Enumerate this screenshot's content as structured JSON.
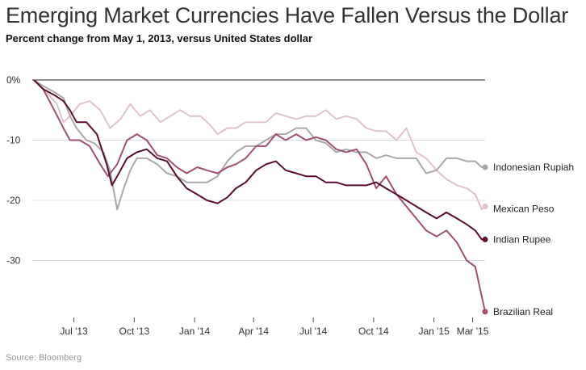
{
  "title": "Emerging Market Currencies Have Fallen Versus the Dollar",
  "subtitle": "Percent change from May 1, 2013, versus United States dollar",
  "source": "Source: Bloomberg",
  "chart_data": {
    "type": "line",
    "title": "Emerging Market Currencies Have Fallen Versus the Dollar",
    "subtitle": "Percent change from May 1, 2013, versus United States dollar",
    "xlabel": "",
    "ylabel": "",
    "xlim": [
      "2013-05-01",
      "2015-03-20"
    ],
    "ylim": [
      -40,
      2
    ],
    "y_ticks": [
      0,
      -10,
      -20,
      -30
    ],
    "y_tick_labels": [
      "0%",
      "-10",
      "-20",
      "-30"
    ],
    "x_ticks": [
      "2013-07-01",
      "2013-10-01",
      "2014-01-01",
      "2014-04-01",
      "2014-07-01",
      "2014-10-01",
      "2015-01-01",
      "2015-03-01"
    ],
    "x_tick_labels": [
      "Jul '13",
      "Oct '13",
      "Jan '14",
      "Apr '14",
      "Jul '14",
      "Oct '14",
      "Jan '15",
      "Mar '15"
    ],
    "grid": "horizontal",
    "legend": "direct labels at line ends (right)",
    "series": [
      {
        "name": "Mexican Peso",
        "color": "#dfc3cb",
        "points": [
          [
            "2013-05-01",
            0
          ],
          [
            "2013-05-20",
            -2
          ],
          [
            "2013-06-05",
            -4
          ],
          [
            "2013-06-15",
            -7
          ],
          [
            "2013-06-25",
            -6
          ],
          [
            "2013-07-10",
            -4
          ],
          [
            "2013-07-25",
            -3.5
          ],
          [
            "2013-08-10",
            -5
          ],
          [
            "2013-08-25",
            -8
          ],
          [
            "2013-09-10",
            -6.5
          ],
          [
            "2013-09-25",
            -4
          ],
          [
            "2013-10-10",
            -6
          ],
          [
            "2013-10-25",
            -5
          ],
          [
            "2013-11-10",
            -7
          ],
          [
            "2013-11-25",
            -6
          ],
          [
            "2013-12-10",
            -5
          ],
          [
            "2013-12-25",
            -6
          ],
          [
            "2014-01-10",
            -6
          ],
          [
            "2014-01-25",
            -7.5
          ],
          [
            "2014-02-05",
            -9
          ],
          [
            "2014-02-20",
            -8
          ],
          [
            "2014-03-05",
            -8
          ],
          [
            "2014-03-20",
            -7
          ],
          [
            "2014-04-05",
            -7
          ],
          [
            "2014-04-20",
            -7
          ],
          [
            "2014-05-05",
            -5.5
          ],
          [
            "2014-05-20",
            -6
          ],
          [
            "2014-06-05",
            -6.5
          ],
          [
            "2014-06-20",
            -6
          ],
          [
            "2014-07-05",
            -6
          ],
          [
            "2014-07-20",
            -5
          ],
          [
            "2014-08-05",
            -6.5
          ],
          [
            "2014-08-20",
            -6
          ],
          [
            "2014-09-05",
            -6.5
          ],
          [
            "2014-09-20",
            -8
          ],
          [
            "2014-10-05",
            -8.5
          ],
          [
            "2014-10-20",
            -8.5
          ],
          [
            "2014-11-05",
            -10
          ],
          [
            "2014-11-20",
            -8
          ],
          [
            "2014-12-05",
            -12
          ],
          [
            "2014-12-20",
            -13
          ],
          [
            "2015-01-05",
            -15
          ],
          [
            "2015-01-20",
            -16.5
          ],
          [
            "2015-02-05",
            -17.5
          ],
          [
            "2015-02-20",
            -18
          ],
          [
            "2015-03-05",
            -19
          ],
          [
            "2015-03-15",
            -21.5
          ],
          [
            "2015-03-20",
            -21
          ]
        ]
      },
      {
        "name": "Indonesian Rupiah",
        "color": "#a9a9a9",
        "points": [
          [
            "2013-05-01",
            0
          ],
          [
            "2013-05-15",
            -1
          ],
          [
            "2013-06-01",
            -2
          ],
          [
            "2013-06-15",
            -3
          ],
          [
            "2013-06-25",
            -6
          ],
          [
            "2013-07-05",
            -8
          ],
          [
            "2013-07-20",
            -10
          ],
          [
            "2013-08-01",
            -10.5
          ],
          [
            "2013-08-15",
            -12
          ],
          [
            "2013-08-25",
            -15
          ],
          [
            "2013-09-05",
            -21.5
          ],
          [
            "2013-09-15",
            -18
          ],
          [
            "2013-09-25",
            -15
          ],
          [
            "2013-10-05",
            -13
          ],
          [
            "2013-10-20",
            -13
          ],
          [
            "2013-11-05",
            -14
          ],
          [
            "2013-11-20",
            -15.5
          ],
          [
            "2013-12-05",
            -16
          ],
          [
            "2013-12-20",
            -17
          ],
          [
            "2014-01-05",
            -17
          ],
          [
            "2014-01-20",
            -17
          ],
          [
            "2014-02-05",
            -16
          ],
          [
            "2014-02-20",
            -13.5
          ],
          [
            "2014-03-05",
            -12
          ],
          [
            "2014-03-20",
            -11
          ],
          [
            "2014-04-05",
            -11
          ],
          [
            "2014-04-20",
            -10
          ],
          [
            "2014-05-05",
            -9
          ],
          [
            "2014-05-20",
            -9
          ],
          [
            "2014-06-05",
            -8
          ],
          [
            "2014-06-20",
            -8
          ],
          [
            "2014-07-05",
            -10
          ],
          [
            "2014-07-20",
            -10.5
          ],
          [
            "2014-08-05",
            -12
          ],
          [
            "2014-08-20",
            -11.5
          ],
          [
            "2014-09-05",
            -12
          ],
          [
            "2014-09-20",
            -12
          ],
          [
            "2014-10-05",
            -13
          ],
          [
            "2014-10-20",
            -12.5
          ],
          [
            "2014-11-05",
            -13
          ],
          [
            "2014-11-20",
            -13
          ],
          [
            "2014-12-05",
            -13
          ],
          [
            "2014-12-20",
            -15.5
          ],
          [
            "2015-01-05",
            -15
          ],
          [
            "2015-01-20",
            -13
          ],
          [
            "2015-02-05",
            -13
          ],
          [
            "2015-02-20",
            -13.5
          ],
          [
            "2015-03-05",
            -13.5
          ],
          [
            "2015-03-15",
            -14.5
          ],
          [
            "2015-03-20",
            -14.5
          ]
        ]
      },
      {
        "name": "Brazilian Real",
        "color": "#a3506b",
        "points": [
          [
            "2013-05-01",
            0
          ],
          [
            "2013-05-15",
            -1.5
          ],
          [
            "2013-06-01",
            -5
          ],
          [
            "2013-06-15",
            -8
          ],
          [
            "2013-06-25",
            -10
          ],
          [
            "2013-07-10",
            -10
          ],
          [
            "2013-07-25",
            -11
          ],
          [
            "2013-08-10",
            -14
          ],
          [
            "2013-08-22",
            -16
          ],
          [
            "2013-09-05",
            -14
          ],
          [
            "2013-09-20",
            -10
          ],
          [
            "2013-10-05",
            -9
          ],
          [
            "2013-10-20",
            -10
          ],
          [
            "2013-11-05",
            -12.5
          ],
          [
            "2013-11-20",
            -13
          ],
          [
            "2013-12-05",
            -14.5
          ],
          [
            "2013-12-20",
            -15.5
          ],
          [
            "2014-01-05",
            -14.5
          ],
          [
            "2014-01-20",
            -15
          ],
          [
            "2014-02-05",
            -15.5
          ],
          [
            "2014-02-20",
            -14.5
          ],
          [
            "2014-03-05",
            -14
          ],
          [
            "2014-03-20",
            -13
          ],
          [
            "2014-04-05",
            -11
          ],
          [
            "2014-04-20",
            -11
          ],
          [
            "2014-05-05",
            -9
          ],
          [
            "2014-05-20",
            -10
          ],
          [
            "2014-06-05",
            -9
          ],
          [
            "2014-06-20",
            -10
          ],
          [
            "2014-07-05",
            -9.5
          ],
          [
            "2014-07-20",
            -10
          ],
          [
            "2014-08-05",
            -11.5
          ],
          [
            "2014-08-20",
            -12
          ],
          [
            "2014-09-05",
            -11.5
          ],
          [
            "2014-09-20",
            -14
          ],
          [
            "2014-10-05",
            -18
          ],
          [
            "2014-10-20",
            -16
          ],
          [
            "2014-11-05",
            -19
          ],
          [
            "2014-11-20",
            -21
          ],
          [
            "2014-12-05",
            -23
          ],
          [
            "2014-12-20",
            -25
          ],
          [
            "2015-01-05",
            -26
          ],
          [
            "2015-01-20",
            -25
          ],
          [
            "2015-02-05",
            -27
          ],
          [
            "2015-02-20",
            -30
          ],
          [
            "2015-03-05",
            -31
          ],
          [
            "2015-03-15",
            -36
          ],
          [
            "2015-03-20",
            -38.5
          ]
        ]
      },
      {
        "name": "Indian Rupee",
        "color": "#5b0c32",
        "points": [
          [
            "2013-05-01",
            0
          ],
          [
            "2013-05-15",
            -1.5
          ],
          [
            "2013-06-01",
            -2.5
          ],
          [
            "2013-06-15",
            -3.5
          ],
          [
            "2013-06-25",
            -5
          ],
          [
            "2013-07-05",
            -7
          ],
          [
            "2013-07-20",
            -7
          ],
          [
            "2013-08-05",
            -9
          ],
          [
            "2013-08-20",
            -14
          ],
          [
            "2013-08-28",
            -17.5
          ],
          [
            "2013-09-05",
            -16
          ],
          [
            "2013-09-20",
            -13
          ],
          [
            "2013-10-05",
            -12
          ],
          [
            "2013-10-20",
            -11.5
          ],
          [
            "2013-11-05",
            -13
          ],
          [
            "2013-11-20",
            -13.5
          ],
          [
            "2013-12-05",
            -16
          ],
          [
            "2013-12-20",
            -18
          ],
          [
            "2014-01-05",
            -19
          ],
          [
            "2014-01-20",
            -20
          ],
          [
            "2014-02-05",
            -20.5
          ],
          [
            "2014-02-20",
            -19.5
          ],
          [
            "2014-03-05",
            -18
          ],
          [
            "2014-03-20",
            -17
          ],
          [
            "2014-04-05",
            -15
          ],
          [
            "2014-04-20",
            -14
          ],
          [
            "2014-05-05",
            -13.5
          ],
          [
            "2014-05-20",
            -15
          ],
          [
            "2014-06-05",
            -15.5
          ],
          [
            "2014-06-20",
            -16
          ],
          [
            "2014-07-05",
            -16
          ],
          [
            "2014-07-20",
            -17
          ],
          [
            "2014-08-05",
            -17
          ],
          [
            "2014-08-20",
            -17.5
          ],
          [
            "2014-09-05",
            -17.5
          ],
          [
            "2014-09-20",
            -17.5
          ],
          [
            "2014-10-05",
            -17
          ],
          [
            "2014-10-20",
            -18
          ],
          [
            "2014-11-05",
            -19
          ],
          [
            "2014-11-20",
            -20
          ],
          [
            "2014-12-05",
            -21
          ],
          [
            "2014-12-20",
            -22
          ],
          [
            "2015-01-05",
            -23
          ],
          [
            "2015-01-20",
            -22
          ],
          [
            "2015-02-05",
            -23
          ],
          [
            "2015-02-20",
            -24
          ],
          [
            "2015-03-05",
            -25
          ],
          [
            "2015-03-15",
            -26.5
          ],
          [
            "2015-03-20",
            -26.5
          ]
        ]
      }
    ],
    "end_labels": [
      "Indonesian Rupiah",
      "Mexican Peso",
      "Indian Rupee",
      "Brazilian Real"
    ]
  }
}
